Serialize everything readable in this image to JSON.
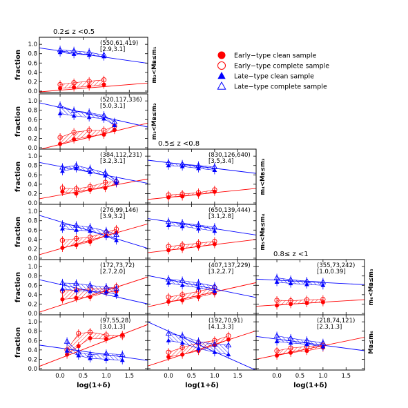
{
  "chart_data": {
    "type": "scatter",
    "colors": {
      "early": "#ff0000",
      "late": "#0000ff"
    },
    "xlabel": "log(1+δ)",
    "ylabel": "fraction",
    "xticks": [
      "0.0",
      "0.5",
      "1.0",
      "1.5"
    ],
    "yticks": [
      "0.0",
      "0.2",
      "0.4",
      "0.6",
      "0.8",
      "1.0"
    ],
    "xlim": [
      -0.45,
      1.9
    ],
    "ylim": [
      -0.03,
      1.15
    ],
    "legend": {
      "placement": "top-right",
      "entries": [
        {
          "key": "early_clean",
          "label": "Early−type clean sample",
          "marker": "filled-circle",
          "color": "#ff0000"
        },
        {
          "key": "early_complete",
          "label": "Early−type complete sample",
          "marker": "open-circle",
          "color": "#ff0000"
        },
        {
          "key": "late_clean",
          "label": "Late−type clean sample",
          "marker": "filled-triangle",
          "color": "#0000ff"
        },
        {
          "key": "late_complete",
          "label": "Late−type complete sample",
          "marker": "open-triangle",
          "color": "#0000ff"
        }
      ]
    },
    "columns": [
      {
        "label": "0.2≤ z <0.5"
      },
      {
        "label": "0.5≤ z <0.8"
      },
      {
        "label": "0.8≤ z <1"
      }
    ],
    "rows": [
      {
        "label": "m₂<Mʙ≤m₁"
      },
      {
        "label": "m₃<Mʙ≤m₂"
      },
      {
        "label": "m₄<Mʙ≤m₃"
      },
      {
        "label": "m₅<Mʙ≤m₄"
      },
      {
        "label": "m₆<Mʙ≤m₅"
      },
      {
        "label": "Mʙ≤m₆"
      }
    ],
    "panels": [
      {
        "col": 0,
        "row": 0,
        "counts": "(550,61,419)",
        "ratio": "[2.9,3.1]",
        "x": [
          0.0,
          0.3,
          0.63,
          0.95
        ],
        "early_clean": [
          0.06,
          0.08,
          0.1,
          0.14
        ],
        "early_complete": [
          0.14,
          0.18,
          0.21,
          0.24
        ],
        "late_clean": [
          0.83,
          0.79,
          0.77,
          0.74
        ],
        "late_complete": [
          0.88,
          0.86,
          0.83,
          0.77
        ],
        "early_fit": [
          0.02,
          0.08
        ],
        "late_fit": [
          0.86,
          -0.14
        ]
      },
      {
        "col": 0,
        "row": 1,
        "counts": "(520,117,336)",
        "ratio": "[5.0,3.1]",
        "x": [
          0.0,
          0.3,
          0.63,
          0.95,
          1.18
        ],
        "early_clean": [
          0.08,
          0.18,
          0.24,
          0.28,
          0.38
        ],
        "early_complete": [
          0.22,
          0.33,
          0.37,
          0.37,
          0.46
        ],
        "late_clean": [
          0.73,
          0.68,
          0.65,
          0.62,
          0.48
        ],
        "late_complete": [
          0.9,
          0.79,
          0.75,
          0.69,
          0.55
        ],
        "early_fit": [
          0.07,
          0.24
        ],
        "late_fit": [
          0.86,
          -0.22
        ]
      },
      {
        "col": 0,
        "row": 2,
        "counts": "(384,112,231)",
        "ratio": "[3.2,3.1]",
        "x": [
          0.05,
          0.35,
          0.65,
          0.98,
          1.22
        ],
        "early_clean": [
          0.24,
          0.2,
          0.28,
          0.32,
          0.42
        ],
        "early_complete": [
          0.32,
          0.3,
          0.35,
          0.44,
          0.45
        ],
        "late_clean": [
          0.68,
          0.74,
          0.66,
          0.58,
          0.43
        ],
        "late_complete": [
          0.76,
          0.8,
          0.73,
          0.64,
          0.48
        ],
        "early_fit": [
          0.17,
          0.18
        ],
        "late_fit": [
          0.78,
          -0.19
        ]
      },
      {
        "col": 0,
        "row": 3,
        "counts": "(276,99,146)",
        "ratio": "[3.9,3.2]",
        "x": [
          0.05,
          0.35,
          0.65,
          1.0,
          1.22
        ],
        "early_clean": [
          0.22,
          0.28,
          0.35,
          0.48,
          0.55
        ],
        "early_complete": [
          0.38,
          0.42,
          0.45,
          0.55,
          0.62
        ],
        "late_clean": [
          0.63,
          0.6,
          0.58,
          0.47,
          0.38
        ],
        "late_complete": [
          0.72,
          0.7,
          0.66,
          0.58,
          0.5
        ],
        "early_fit": [
          0.2,
          0.28
        ],
        "late_fit": [
          0.78,
          -0.3
        ]
      },
      {
        "col": 0,
        "row": 4,
        "counts": "(172,73,72)",
        "ratio": "[2.7,2.0]",
        "x": [
          0.05,
          0.35,
          0.65,
          1.0,
          1.22
        ],
        "early_clean": [
          0.3,
          0.33,
          0.35,
          0.45,
          0.47
        ],
        "early_complete": [
          0.48,
          0.5,
          0.52,
          0.53,
          0.57
        ],
        "late_clean": [
          0.52,
          0.49,
          0.47,
          0.46,
          0.4
        ],
        "late_complete": [
          0.65,
          0.64,
          0.6,
          0.56,
          0.53
        ],
        "early_fit": [
          0.17,
          0.32
        ],
        "late_fit": [
          0.62,
          -0.22
        ]
      },
      {
        "col": 0,
        "row": 5,
        "counts": "(97,55,28)",
        "ratio": "[3.0,1.3]",
        "x": [
          0.15,
          0.4,
          0.65,
          1.0,
          1.35
        ],
        "early_clean": [
          0.3,
          0.48,
          0.65,
          0.63,
          0.72
        ],
        "early_complete": [
          0.4,
          0.75,
          0.78,
          0.72,
          0.7
        ],
        "late_clean": [
          0.38,
          0.28,
          0.22,
          0.2,
          0.18
        ],
        "late_complete": [
          0.58,
          0.35,
          0.3,
          0.32,
          0.3
        ],
        "early_fit": [
          0.22,
          0.38
        ],
        "late_fit": [
          0.44,
          -0.14
        ]
      },
      {
        "col": 1,
        "row": 2,
        "counts": "(830,126,640)",
        "ratio": "[3.5,3.4]",
        "x": [
          0.0,
          0.3,
          0.65,
          1.0
        ],
        "early_clean": [
          0.12,
          0.14,
          0.18,
          0.24
        ],
        "early_complete": [
          0.17,
          0.19,
          0.22,
          0.28
        ],
        "late_clean": [
          0.8,
          0.78,
          0.74,
          0.7
        ],
        "late_complete": [
          0.86,
          0.83,
          0.8,
          0.77
        ],
        "early_fit": [
          0.12,
          0.1
        ],
        "late_fit": [
          0.86,
          -0.12
        ]
      },
      {
        "col": 1,
        "row": 3,
        "counts": "(650,139,444)",
        "ratio": "[3.1,2.8]",
        "x": [
          0.0,
          0.3,
          0.65,
          1.0
        ],
        "early_clean": [
          0.17,
          0.2,
          0.25,
          0.3
        ],
        "early_complete": [
          0.25,
          0.28,
          0.32,
          0.36
        ],
        "late_clean": [
          0.7,
          0.68,
          0.63,
          0.58
        ],
        "late_complete": [
          0.78,
          0.75,
          0.71,
          0.66
        ],
        "early_fit": [
          0.17,
          0.12
        ],
        "late_fit": [
          0.78,
          -0.15
        ]
      },
      {
        "col": 1,
        "row": 4,
        "counts": "(407,137,229)",
        "ratio": "[3.2,2.7]",
        "x": [
          0.0,
          0.3,
          0.65,
          1.0
        ],
        "early_clean": [
          0.25,
          0.28,
          0.35,
          0.43
        ],
        "early_complete": [
          0.35,
          0.4,
          0.47,
          0.55
        ],
        "late_clean": [
          0.65,
          0.6,
          0.55,
          0.48
        ],
        "late_complete": [
          0.73,
          0.7,
          0.65,
          0.58
        ],
        "early_fit": [
          0.24,
          0.22
        ],
        "late_fit": [
          0.72,
          -0.2
        ]
      },
      {
        "col": 1,
        "row": 5,
        "counts": "(192,70,91)",
        "ratio": "[4.1,3.3]",
        "x": [
          0.0,
          0.3,
          0.65,
          1.0,
          1.3
        ],
        "early_clean": [
          0.25,
          0.3,
          0.38,
          0.5,
          0.62
        ],
        "early_complete": [
          0.35,
          0.45,
          0.55,
          0.6,
          0.7
        ],
        "late_clean": [
          0.6,
          0.55,
          0.43,
          0.35,
          0.3
        ],
        "late_complete": [
          0.75,
          0.7,
          0.58,
          0.52,
          0.5
        ],
        "early_fit": [
          0.2,
          0.32
        ],
        "late_fit": [
          0.8,
          -0.44
        ]
      },
      {
        "col": 2,
        "row": 4,
        "counts": "(355,73,242)",
        "ratio": "[1.0,0.39]",
        "x": [
          0.0,
          0.3,
          0.65,
          1.0
        ],
        "early_clean": [
          0.17,
          0.2,
          0.22,
          0.24
        ],
        "early_complete": [
          0.28,
          0.27,
          0.29,
          0.3
        ],
        "late_clean": [
          0.67,
          0.64,
          0.62,
          0.6
        ],
        "late_complete": [
          0.76,
          0.72,
          0.69,
          0.67
        ],
        "early_fit": [
          0.18,
          0.06
        ],
        "late_fit": [
          0.71,
          -0.05
        ]
      },
      {
        "col": 2,
        "row": 5,
        "counts": "(218,74,121)",
        "ratio": "[2.3,1.3]",
        "x": [
          0.0,
          0.3,
          0.65,
          1.0
        ],
        "early_clean": [
          0.28,
          0.34,
          0.38,
          0.45
        ],
        "early_complete": [
          0.38,
          0.44,
          0.47,
          0.5
        ],
        "late_clean": [
          0.58,
          0.55,
          0.52,
          0.47
        ],
        "late_complete": [
          0.7,
          0.65,
          0.6,
          0.55
        ],
        "early_fit": [
          0.29,
          0.2
        ],
        "late_fit": [
          0.63,
          -0.13
        ]
      }
    ]
  }
}
